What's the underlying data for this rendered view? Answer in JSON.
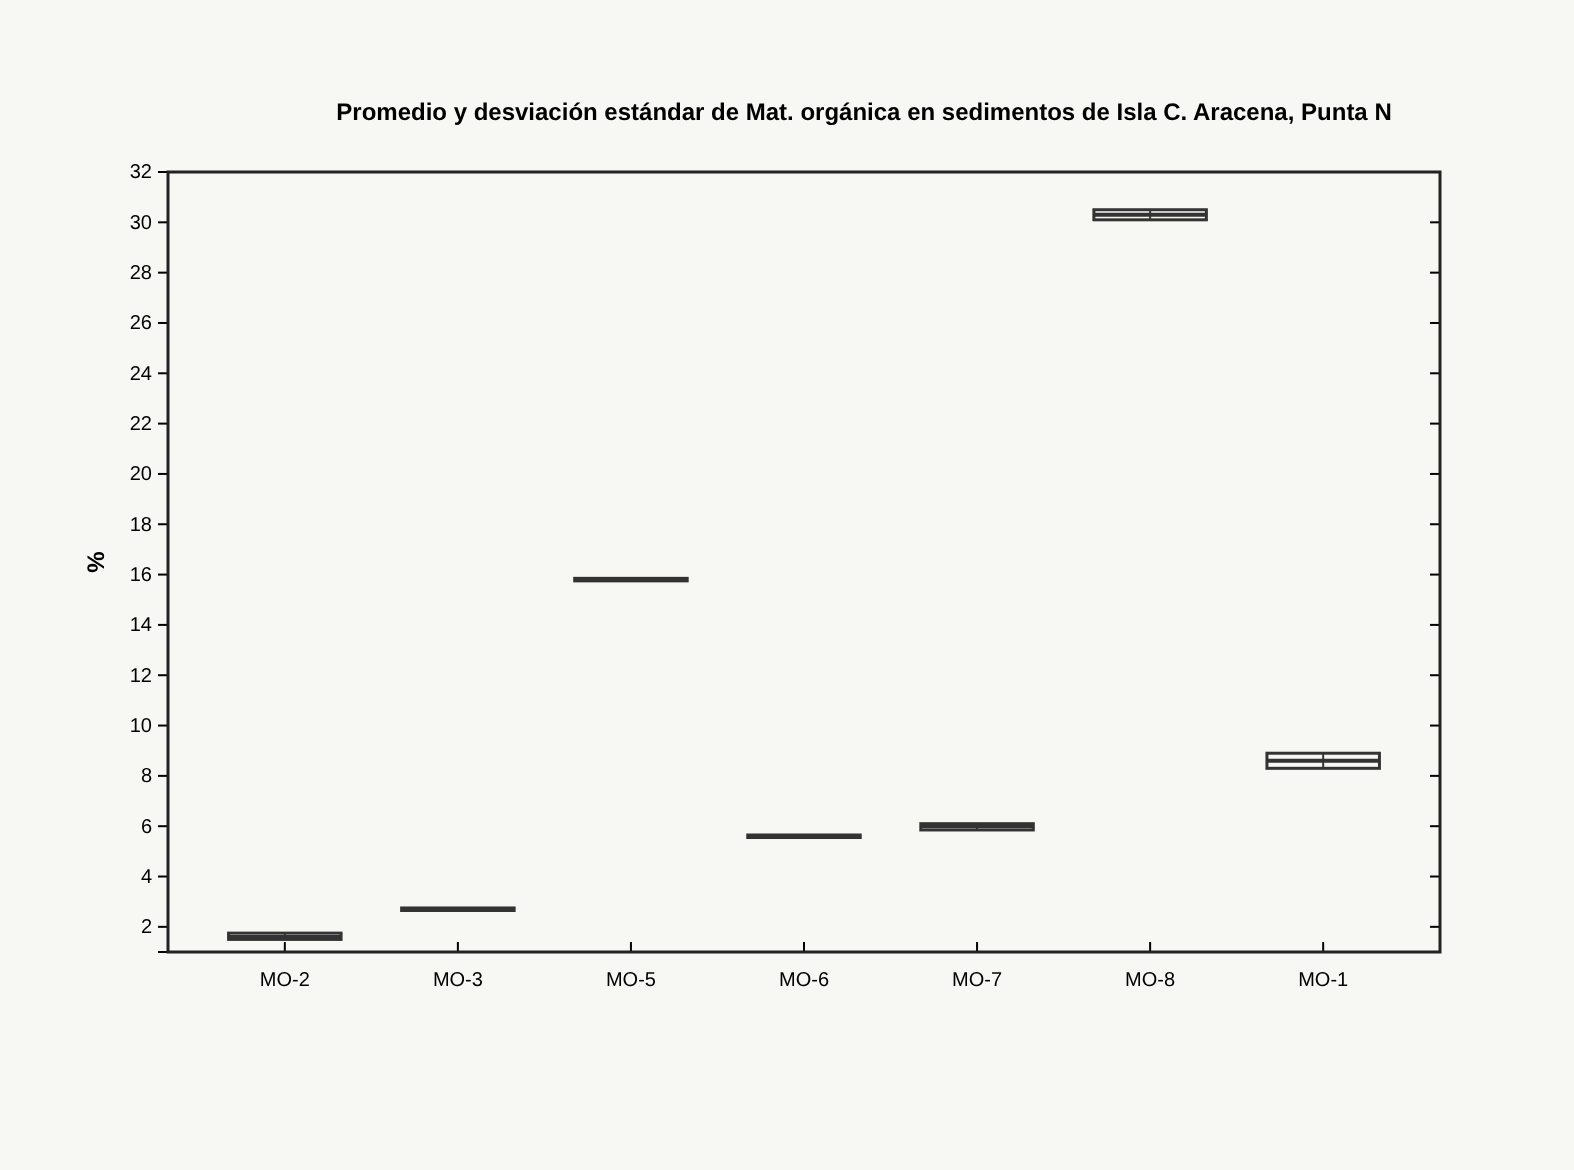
{
  "chart_data": {
    "type": "box",
    "title": "Promedio y desviación estándar de Mat. orgánica en sedimentos de Isla C. Aracena, Punta N",
    "ylabel": "%",
    "categories": [
      "MO-2",
      "MO-3",
      "MO-5",
      "MO-6",
      "MO-7",
      "MO-8",
      "MO-1"
    ],
    "boxes": [
      {
        "low": 1.5,
        "q1": 1.5,
        "median": 1.6,
        "q3": 1.75,
        "high": 1.75
      },
      {
        "low": 2.65,
        "q1": 2.65,
        "median": 2.7,
        "q3": 2.75,
        "high": 2.75
      },
      {
        "low": 15.75,
        "q1": 15.75,
        "median": 15.8,
        "q3": 15.85,
        "high": 15.85
      },
      {
        "low": 5.55,
        "q1": 5.55,
        "median": 5.6,
        "q3": 5.65,
        "high": 5.65
      },
      {
        "low": 5.85,
        "q1": 5.85,
        "median": 6.0,
        "q3": 6.1,
        "high": 6.1
      },
      {
        "low": 30.1,
        "q1": 30.1,
        "median": 30.3,
        "q3": 30.5,
        "high": 30.5
      },
      {
        "low": 8.3,
        "q1": 8.3,
        "median": 8.6,
        "q3": 8.9,
        "high": 8.9
      }
    ],
    "color": "#333333",
    "ylim": [
      1,
      32
    ],
    "yticks": [
      2,
      4,
      6,
      8,
      10,
      12,
      14,
      16,
      18,
      20,
      22,
      24,
      26,
      28,
      30,
      32
    ],
    "grid": false
  }
}
